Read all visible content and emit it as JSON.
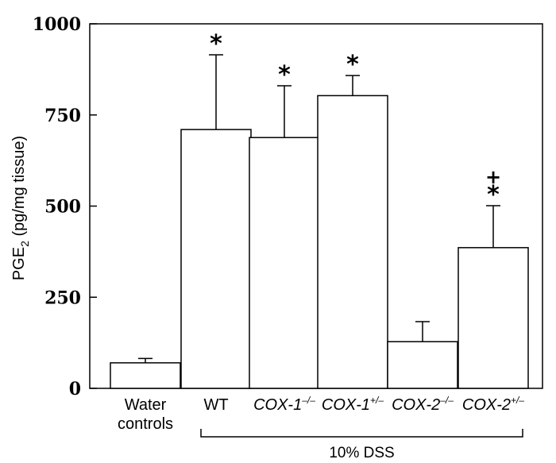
{
  "chart_data": {
    "type": "bar",
    "ylabel": "PGE",
    "ylabel_subscript": "2",
    "ylabel_unit": " (pg/mg tissue)",
    "ylim": [
      0,
      1000
    ],
    "yticks": [
      "0",
      "250",
      "500",
      "750",
      "1000"
    ],
    "ytick_values": [
      0,
      250,
      500,
      750,
      1000
    ],
    "categories": [
      {
        "label": "Water",
        "label2": "controls",
        "sup": "",
        "italic": false
      },
      {
        "label": "WT",
        "label2": "",
        "sup": "",
        "italic": false
      },
      {
        "label": "COX-1",
        "label2": "",
        "sup": "–/–",
        "italic": true
      },
      {
        "label": "COX-1",
        "label2": "",
        "sup": "+/–",
        "italic": true
      },
      {
        "label": "COX-2",
        "label2": "",
        "sup": "–/–",
        "italic": true
      },
      {
        "label": "COX-2",
        "label2": "",
        "sup": "+/–",
        "italic": true
      }
    ],
    "values": [
      70,
      710,
      688,
      803,
      128,
      386
    ],
    "errors": [
      12,
      205,
      142,
      55,
      55,
      115
    ],
    "annotations": [
      "",
      "*",
      "*",
      "*",
      "",
      "*"
    ],
    "annotations_extra": [
      "",
      "",
      "",
      "",
      "",
      "+"
    ],
    "group_label": "10% DSS",
    "bar_color": "#ffffff",
    "line_color": "#000000",
    "grid": false
  }
}
